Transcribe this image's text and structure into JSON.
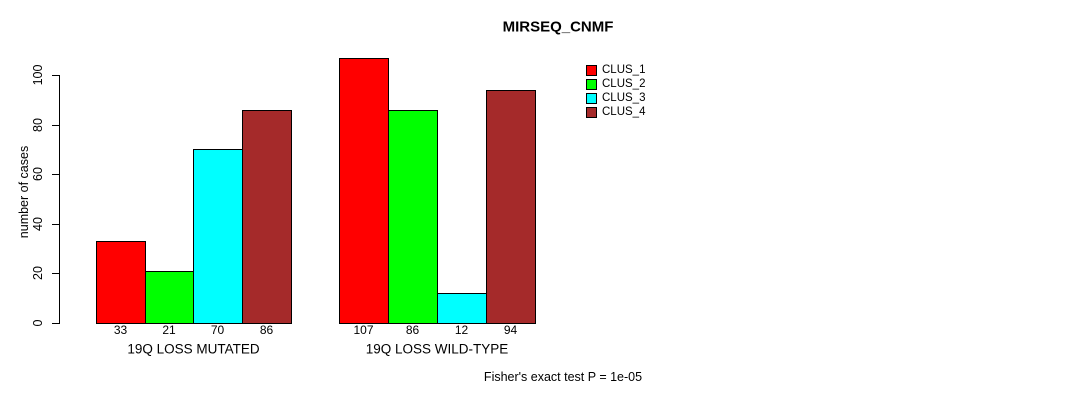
{
  "title": "MIRSEQ_CNMF",
  "footer": "Fisher's exact test P = 1e-05",
  "y_axis": {
    "label": "number of cases",
    "ticks": [
      0,
      20,
      40,
      60,
      80,
      100
    ]
  },
  "chart_data": {
    "type": "bar",
    "title": "MIRSEQ_CNMF",
    "xlabel": "",
    "ylabel": "number of cases",
    "categories": [
      "19Q LOSS MUTATED",
      "19Q LOSS WILD-TYPE"
    ],
    "series": [
      {
        "name": "CLUS_1",
        "color": "#ff0000",
        "values": [
          33,
          107
        ]
      },
      {
        "name": "CLUS_2",
        "color": "#00ff00",
        "values": [
          21,
          86
        ]
      },
      {
        "name": "CLUS_3",
        "color": "#00ffff",
        "values": [
          70,
          12
        ]
      },
      {
        "name": "CLUS_4",
        "color": "#a52a2a",
        "values": [
          86,
          94
        ]
      }
    ],
    "y_ticks": [
      0,
      20,
      40,
      60,
      80,
      100
    ],
    "ylim": [
      0,
      100
    ],
    "bar_value_labels_shown": true,
    "grid": false,
    "legend_position": "top-right",
    "legend_entries": [
      "CLUS_1",
      "CLUS_2",
      "CLUS_3",
      "CLUS_4"
    ],
    "annotation": "Fisher's exact test P = 1e-05"
  }
}
